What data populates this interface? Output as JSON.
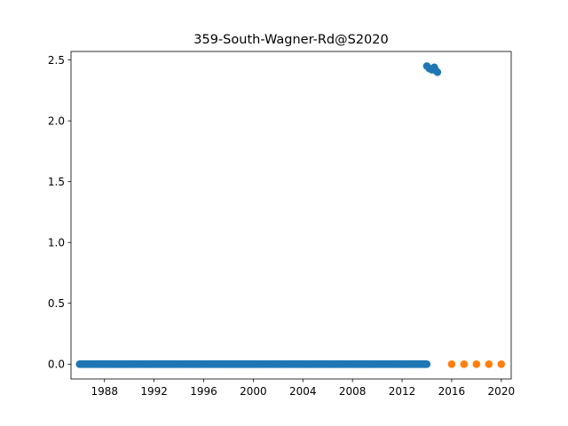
{
  "chart_data": {
    "type": "scatter",
    "title": "359-South-Wagner-Rd@S2020",
    "xlabel": "",
    "ylabel": "",
    "xlim": [
      1985.3,
      2020.8
    ],
    "ylim": [
      -0.122,
      2.57
    ],
    "x_ticks": [
      1988,
      1992,
      1996,
      2000,
      2004,
      2008,
      2012,
      2016,
      2020
    ],
    "x_tick_labels": [
      "1988",
      "1992",
      "1996",
      "2000",
      "2004",
      "2008",
      "2012",
      "2016",
      "2020"
    ],
    "y_ticks": [
      0.0,
      0.5,
      1.0,
      1.5,
      2.0,
      2.5
    ],
    "y_tick_labels": [
      "0.0",
      "0.5",
      "1.0",
      "1.5",
      "2.0",
      "2.5"
    ],
    "grid": false,
    "series": [
      {
        "color": "#1f77b4",
        "baseline": {
          "x_start": 1986.0,
          "x_end": 2014.0,
          "x_step": 0.0833,
          "y": 0.0
        },
        "points": [
          {
            "x": 2014.0,
            "y": 2.45
          },
          {
            "x": 2014.2,
            "y": 2.43
          },
          {
            "x": 2014.4,
            "y": 2.42
          },
          {
            "x": 2014.6,
            "y": 2.44
          },
          {
            "x": 2014.75,
            "y": 2.41
          },
          {
            "x": 2014.85,
            "y": 2.4
          }
        ]
      },
      {
        "color": "#ff7f0e",
        "points": [
          {
            "x": 2016.0,
            "y": 0.0
          },
          {
            "x": 2017.0,
            "y": 0.0
          },
          {
            "x": 2018.0,
            "y": 0.0
          },
          {
            "x": 2019.0,
            "y": 0.0
          },
          {
            "x": 2020.0,
            "y": 0.0
          }
        ]
      }
    ]
  }
}
